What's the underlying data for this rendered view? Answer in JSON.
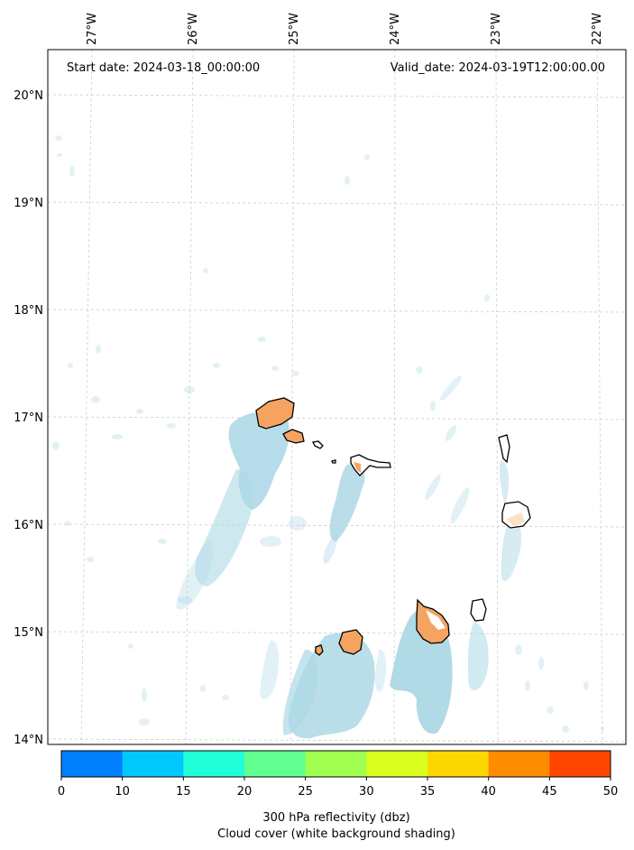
{
  "header": {
    "start_date": "Start date: 2024-03-18_00:00:00",
    "valid_date": "Valid_date: 2024-03-19T12:00:00.00"
  },
  "map": {
    "lon_labels": [
      "27°W",
      "26°W",
      "25°W",
      "24°W",
      "23°W",
      "22°W"
    ],
    "lat_labels": [
      "20°N",
      "19°N",
      "18°N",
      "17°N",
      "16°N",
      "15°N",
      "14°N"
    ],
    "land_color": "#f4a460",
    "cloud_color": "#add8e6",
    "grid": true
  },
  "colorbar": {
    "ticks": [
      "0",
      "10",
      "15",
      "20",
      "25",
      "30",
      "35",
      "40",
      "45",
      "50"
    ],
    "colors": [
      "#0080ff",
      "#00c8ff",
      "#20ffd8",
      "#60ff90",
      "#a0ff50",
      "#d8ff20",
      "#ffd700",
      "#ff8c00",
      "#ff4500"
    ],
    "label_line1": "300 hPa reflectivity (dbz)",
    "label_line2": "Cloud cover (white background shading)"
  }
}
